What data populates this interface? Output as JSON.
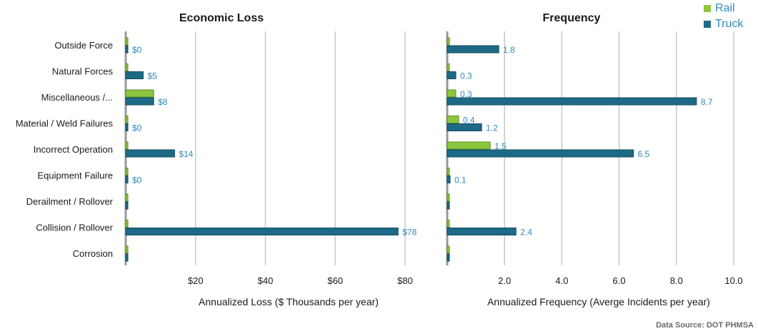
{
  "chart_data": [
    {
      "type": "bar",
      "orientation": "horizontal",
      "title": "Economic Loss",
      "xlabel": "Annualized Loss ($ Thousands per year)",
      "xlim": [
        0,
        80
      ],
      "xticks": [
        "$20",
        "$40",
        "$60",
        "$80"
      ],
      "categories": [
        "Outside Force",
        "Natural Forces",
        "Miscellaneous /...",
        "Material / Weld Failures",
        "Incorrect Operation",
        "Equipment Failure",
        "Derailment / Rollover",
        "Collision / Rollover",
        "Corrosion"
      ],
      "series": [
        {
          "name": "Rail",
          "values": [
            0,
            0,
            8,
            0,
            0,
            0,
            0,
            0,
            0
          ],
          "labels": [
            "",
            "",
            "",
            "",
            "",
            "",
            "",
            "",
            ""
          ]
        },
        {
          "name": "Truck",
          "values": [
            0,
            5,
            8,
            0,
            14,
            0,
            0,
            78,
            0
          ],
          "labels": [
            "$0",
            "$5",
            "$8",
            "$0",
            "$14",
            "$0",
            "",
            "$78",
            ""
          ]
        }
      ]
    },
    {
      "type": "bar",
      "orientation": "horizontal",
      "title": "Frequency",
      "xlabel": "Annualized Frequency (Averge Incidents per year)",
      "xlim": [
        0,
        10
      ],
      "xticks": [
        "2.0",
        "4.0",
        "6.0",
        "8.0",
        "10.0"
      ],
      "categories": [
        "Outside Force",
        "Natural Forces",
        "Miscellaneous /...",
        "Material / Weld Failures",
        "Incorrect Operation",
        "Equipment Failure",
        "Derailment / Rollover",
        "Collision / Rollover",
        "Corrosion"
      ],
      "series": [
        {
          "name": "Rail",
          "values": [
            0,
            0,
            0.3,
            0.4,
            1.5,
            0,
            0,
            0,
            0
          ],
          "labels": [
            "",
            "",
            "0.3",
            "0.4",
            "1.5",
            "",
            "",
            "",
            ""
          ]
        },
        {
          "name": "Truck",
          "values": [
            1.8,
            0.3,
            8.7,
            1.2,
            6.5,
            0.1,
            0,
            2.4,
            0
          ],
          "labels": [
            "1.8",
            "0.3",
            "8.7",
            "1.2",
            "6.5",
            "0.1",
            "",
            "2.4",
            ""
          ]
        }
      ]
    }
  ],
  "legend": {
    "rail_label": "Rail",
    "truck_label": "Truck",
    "placement": "top-right"
  },
  "colors": {
    "rail": "#8cc63f",
    "truck": "#1e6a86",
    "label": "#2e8ab8",
    "grid": "#c8c8c8",
    "text": "#1a1a1a"
  },
  "source": "Data Source: DOT PHMSA"
}
